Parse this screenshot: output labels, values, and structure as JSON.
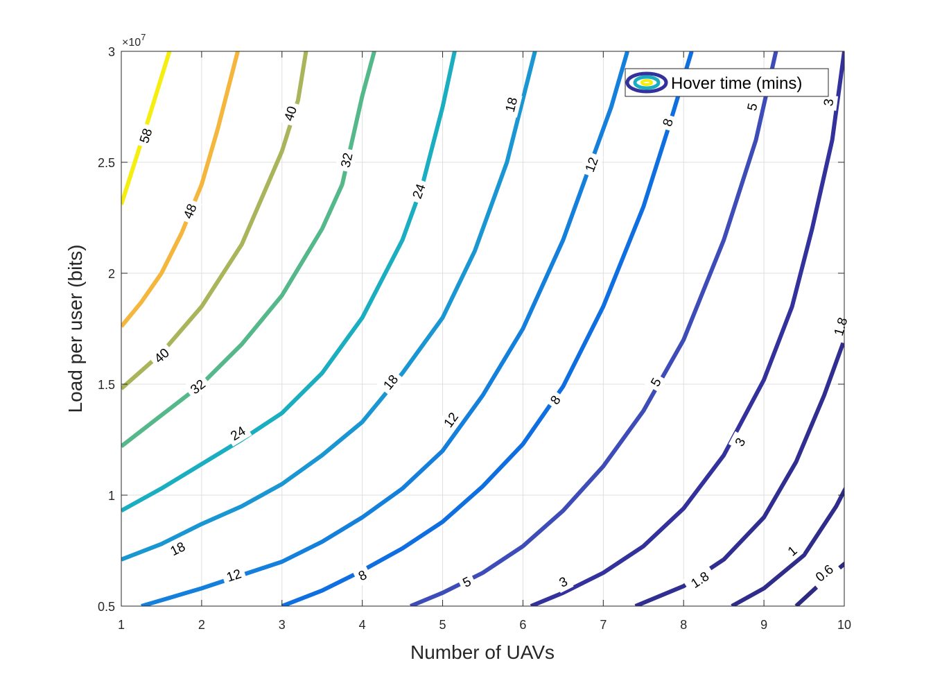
{
  "chart_data": {
    "type": "contour",
    "xlabel": "Number of UAVs",
    "ylabel": "Load per user (bits)",
    "xlim": [
      1,
      10
    ],
    "ylim": [
      5000000,
      30000000
    ],
    "x_ticks": [
      "1",
      "2",
      "3",
      "4",
      "5",
      "6",
      "7",
      "8",
      "9",
      "10"
    ],
    "y_ticks": [
      "0.5",
      "1",
      "1.5",
      "2",
      "2.5",
      "3"
    ],
    "y_tick_values": [
      0.5,
      1,
      1.5,
      2,
      2.5,
      3
    ],
    "y_exponent": "×10",
    "y_exponent_power": "7",
    "grid": true,
    "legend": {
      "label": "Hover time (mins)",
      "position": "top-right"
    },
    "contours": [
      {
        "level": 58,
        "color": "#f5ee10",
        "points": [
          [
            1,
            23.1
          ],
          [
            1.3,
            26.5
          ],
          [
            1.6,
            30.0
          ]
        ],
        "labels": [
          {
            "text": "58",
            "x": 1.3,
            "y": 26.2
          }
        ]
      },
      {
        "level": 48,
        "color": "#f4b63c",
        "points": [
          [
            1,
            17.6
          ],
          [
            1.25,
            18.7
          ],
          [
            1.5,
            20.0
          ],
          [
            1.75,
            21.8
          ],
          [
            2.0,
            24.0
          ],
          [
            2.2,
            26.5
          ],
          [
            2.45,
            30.0
          ]
        ],
        "labels": [
          {
            "text": "48",
            "x": 1.85,
            "y": 22.8
          }
        ]
      },
      {
        "level": 40,
        "color": "#aab45a",
        "points": [
          [
            1,
            14.8
          ],
          [
            1.5,
            16.4
          ],
          [
            2.0,
            18.5
          ],
          [
            2.5,
            21.3
          ],
          [
            3.0,
            25.5
          ],
          [
            3.2,
            27.8
          ],
          [
            3.3,
            30.0
          ]
        ],
        "labels": [
          {
            "text": "40",
            "x": 1.5,
            "y": 16.3
          },
          {
            "text": "40",
            "x": 3.1,
            "y": 27.2
          }
        ]
      },
      {
        "level": 32,
        "color": "#55b88a",
        "points": [
          [
            1,
            12.2
          ],
          [
            1.5,
            13.6
          ],
          [
            2.0,
            15.0
          ],
          [
            2.5,
            16.8
          ],
          [
            3.0,
            19.0
          ],
          [
            3.5,
            22.0
          ],
          [
            3.75,
            24.0
          ],
          [
            4.0,
            28.0
          ],
          [
            4.15,
            30.0
          ]
        ],
        "labels": [
          {
            "text": "32",
            "x": 1.95,
            "y": 14.9
          },
          {
            "text": "32",
            "x": 3.8,
            "y": 25.1
          }
        ]
      },
      {
        "level": 24,
        "color": "#1aaec0",
        "points": [
          [
            1,
            9.3
          ],
          [
            1.5,
            10.3
          ],
          [
            2.0,
            11.4
          ],
          [
            2.5,
            12.5
          ],
          [
            3.0,
            13.7
          ],
          [
            3.5,
            15.5
          ],
          [
            4.0,
            18.0
          ],
          [
            4.5,
            21.5
          ],
          [
            4.75,
            24.0
          ],
          [
            5.0,
            27.5
          ],
          [
            5.15,
            30.0
          ]
        ],
        "labels": [
          {
            "text": "24",
            "x": 2.45,
            "y": 12.8
          },
          {
            "text": "24",
            "x": 4.7,
            "y": 23.7
          }
        ]
      },
      {
        "level": 18,
        "color": "#1a96d2",
        "points": [
          [
            1,
            7.1
          ],
          [
            1.5,
            7.8
          ],
          [
            2.0,
            8.7
          ],
          [
            2.5,
            9.5
          ],
          [
            3.0,
            10.5
          ],
          [
            3.5,
            11.8
          ],
          [
            4.0,
            13.3
          ],
          [
            4.5,
            15.5
          ],
          [
            5.0,
            18.0
          ],
          [
            5.4,
            21.0
          ],
          [
            5.8,
            25.0
          ],
          [
            6.15,
            30.0
          ]
        ],
        "labels": [
          {
            "text": "18",
            "x": 1.7,
            "y": 7.6
          },
          {
            "text": "18",
            "x": 4.35,
            "y": 15.1
          },
          {
            "text": "18",
            "x": 5.85,
            "y": 27.6
          }
        ]
      },
      {
        "level": 12,
        "color": "#1480dc",
        "points": [
          [
            1.25,
            5.0
          ],
          [
            2.0,
            5.8
          ],
          [
            3.0,
            7.0
          ],
          [
            3.5,
            7.9
          ],
          [
            4.0,
            9.0
          ],
          [
            4.5,
            10.3
          ],
          [
            5.0,
            12.0
          ],
          [
            5.5,
            14.5
          ],
          [
            6.0,
            17.5
          ],
          [
            6.5,
            21.5
          ],
          [
            6.85,
            25.0
          ],
          [
            7.1,
            27.5
          ],
          [
            7.3,
            30.0
          ]
        ],
        "labels": [
          {
            "text": "12",
            "x": 2.4,
            "y": 6.4
          },
          {
            "text": "12",
            "x": 5.1,
            "y": 13.4
          },
          {
            "text": "12",
            "x": 6.85,
            "y": 24.9
          }
        ]
      },
      {
        "level": 8,
        "color": "#0f6ee0",
        "points": [
          [
            3.0,
            5.0
          ],
          [
            3.5,
            5.7
          ],
          [
            4.0,
            6.6
          ],
          [
            4.5,
            7.6
          ],
          [
            5.0,
            8.8
          ],
          [
            5.5,
            10.4
          ],
          [
            6.0,
            12.3
          ],
          [
            6.5,
            14.9
          ],
          [
            7.0,
            18.5
          ],
          [
            7.5,
            23.0
          ],
          [
            7.85,
            27.0
          ],
          [
            8.1,
            30.0
          ]
        ],
        "labels": [
          {
            "text": "8",
            "x": 4.0,
            "y": 6.4
          },
          {
            "text": "8",
            "x": 6.4,
            "y": 14.3
          },
          {
            "text": "8",
            "x": 7.8,
            "y": 26.8
          }
        ]
      },
      {
        "level": 5,
        "color": "#3e4cb8",
        "points": [
          [
            4.6,
            5.0
          ],
          [
            5.0,
            5.6
          ],
          [
            5.5,
            6.5
          ],
          [
            6.0,
            7.7
          ],
          [
            6.5,
            9.3
          ],
          [
            7.0,
            11.3
          ],
          [
            7.5,
            13.8
          ],
          [
            8.0,
            17.0
          ],
          [
            8.5,
            21.5
          ],
          [
            8.9,
            26.0
          ],
          [
            9.15,
            30.0
          ]
        ],
        "labels": [
          {
            "text": "5",
            "x": 5.3,
            "y": 6.1
          },
          {
            "text": "5",
            "x": 7.65,
            "y": 15.1
          },
          {
            "text": "5",
            "x": 8.85,
            "y": 27.5
          }
        ]
      },
      {
        "level": 3,
        "color": "#33319b",
        "points": [
          [
            6.1,
            5.0
          ],
          [
            6.5,
            5.6
          ],
          [
            7.0,
            6.5
          ],
          [
            7.5,
            7.7
          ],
          [
            8.0,
            9.4
          ],
          [
            8.5,
            11.8
          ],
          [
            9.0,
            15.2
          ],
          [
            9.35,
            18.5
          ],
          [
            9.6,
            22.0
          ],
          [
            9.85,
            26.0
          ],
          [
            10.0,
            30.0
          ]
        ],
        "labels": [
          {
            "text": "3",
            "x": 6.5,
            "y": 6.1
          },
          {
            "text": "3",
            "x": 8.7,
            "y": 12.4
          },
          {
            "text": "3",
            "x": 9.8,
            "y": 27.7
          }
        ]
      },
      {
        "level": 1.8,
        "color": "#312e91",
        "points": [
          [
            7.4,
            5.0
          ],
          [
            8.0,
            5.9
          ],
          [
            8.5,
            7.1
          ],
          [
            9.0,
            9.0
          ],
          [
            9.4,
            11.5
          ],
          [
            9.75,
            14.5
          ],
          [
            10.0,
            17.0
          ],
          [
            10.2,
            19.5
          ],
          [
            10.4,
            22.7
          ]
        ],
        "labels": [
          {
            "text": "1.8",
            "x": 8.2,
            "y": 6.2
          },
          {
            "text": "1.8",
            "x": 9.95,
            "y": 17.6
          }
        ]
      },
      {
        "level": 1,
        "color": "#2f2c8a",
        "points": [
          [
            8.6,
            5.0
          ],
          [
            9.0,
            5.8
          ],
          [
            9.5,
            7.3
          ],
          [
            9.9,
            9.5
          ],
          [
            10.0,
            10.2
          ],
          [
            10.4,
            12.7
          ]
        ],
        "labels": [
          {
            "text": "1",
            "x": 9.35,
            "y": 7.5
          }
        ]
      },
      {
        "level": 0.6,
        "color": "#2e2a82",
        "points": [
          [
            9.4,
            5.0
          ],
          [
            9.7,
            6.0
          ],
          [
            10.0,
            6.9
          ],
          [
            10.4,
            7.7
          ]
        ],
        "labels": [
          {
            "text": "0.6",
            "x": 9.75,
            "y": 6.5
          }
        ]
      }
    ]
  }
}
